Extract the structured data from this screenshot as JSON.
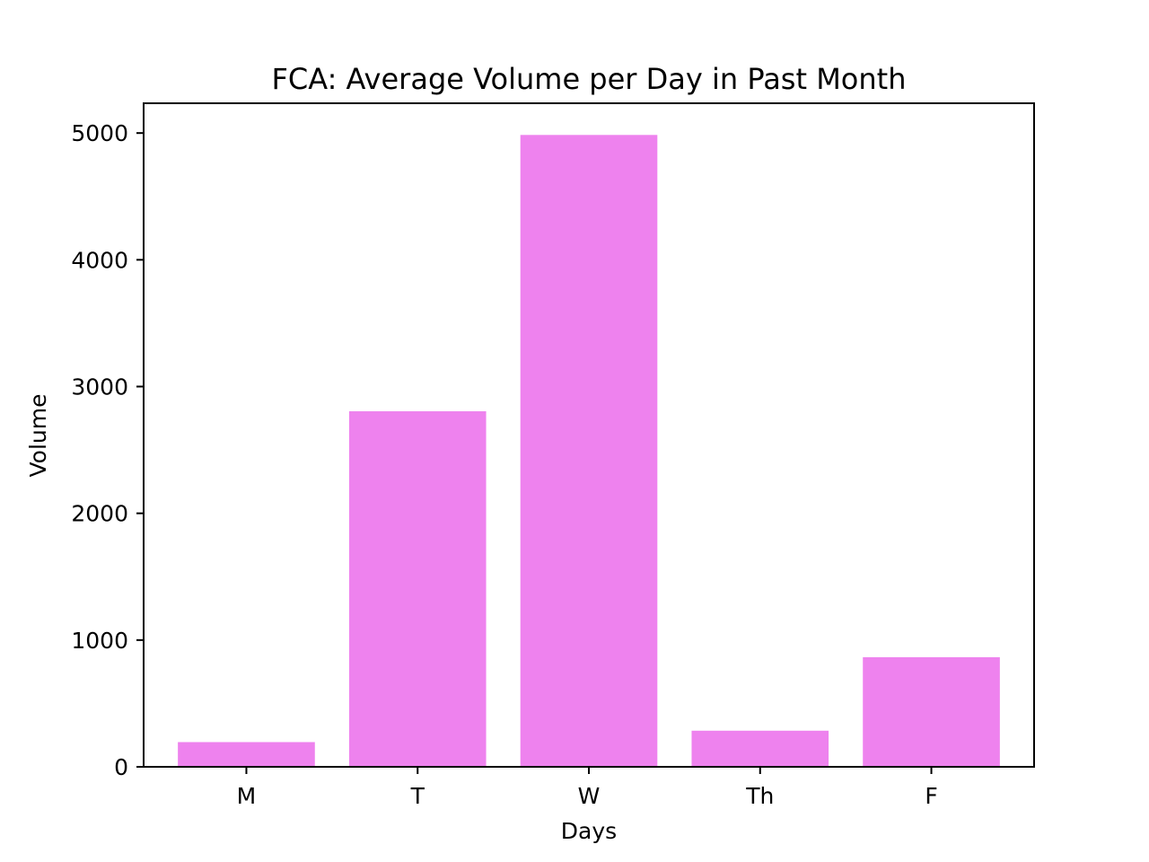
{
  "chart_data": {
    "type": "bar",
    "title": "FCA: Average Volume per Day in Past Month",
    "xlabel": "Days",
    "ylabel": "Volume",
    "categories": [
      "M",
      "T",
      "W",
      "Th",
      "F"
    ],
    "values": [
      195,
      2805,
      4985,
      285,
      865
    ],
    "ylim": [
      0,
      5235
    ],
    "yticks": [
      0,
      1000,
      2000,
      3000,
      4000,
      5000
    ],
    "bar_color": "#ee82ee",
    "grid": false,
    "legend": "none"
  }
}
